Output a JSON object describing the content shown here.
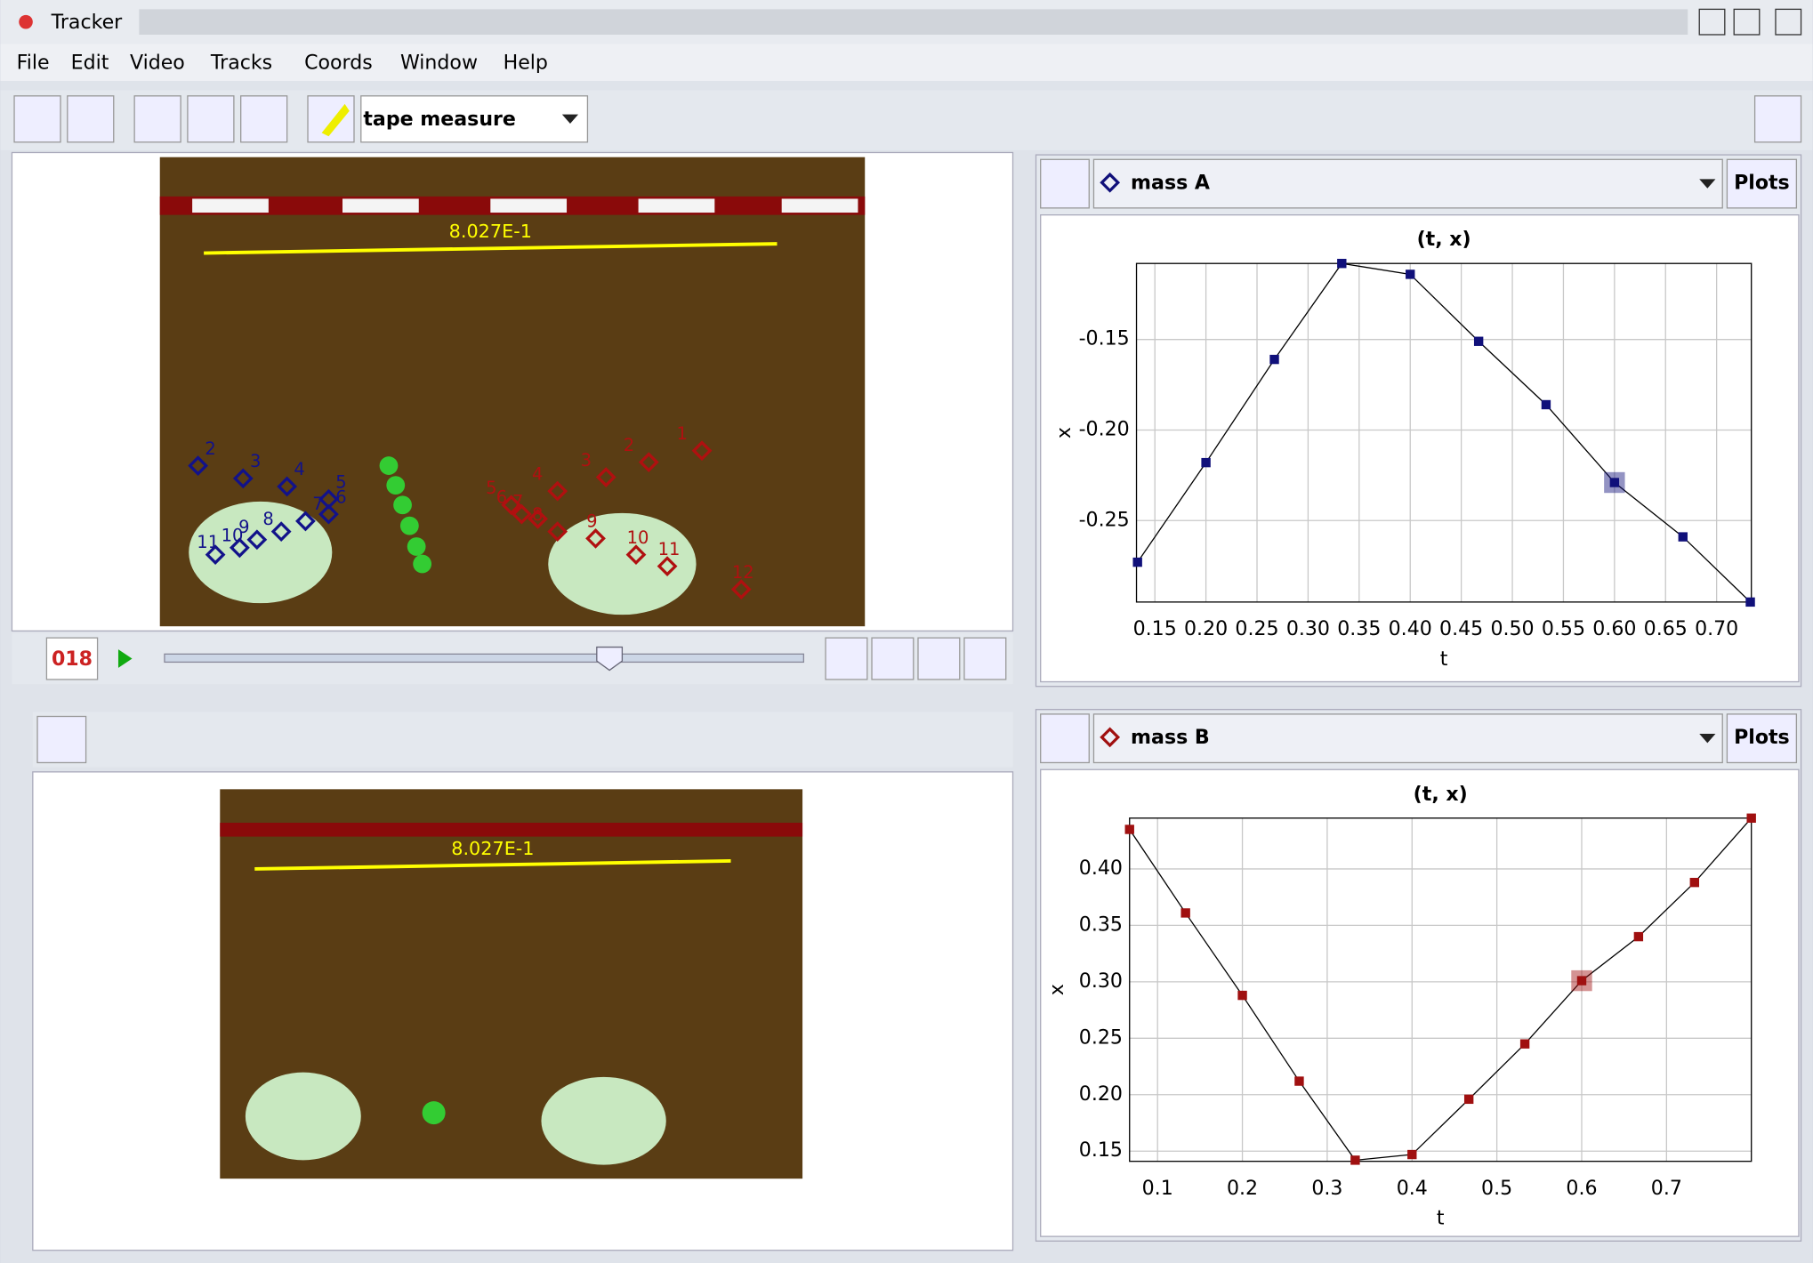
{
  "window": {
    "title": "Tracker"
  },
  "menu": [
    "File",
    "Edit",
    "Video",
    "Tracks",
    "Coords",
    "Window",
    "Help"
  ],
  "toolbar": {
    "tool": "tape measure"
  },
  "video": {
    "tape_label": "8.027E-1",
    "frame": "018",
    "lower_tape_label": "8.027E-1",
    "mass_a_labels": [
      "2",
      "3",
      "4",
      "5",
      "6",
      "7",
      "8",
      "9",
      "10",
      "11"
    ],
    "mass_b_labels": [
      "1",
      "2",
      "3",
      "4",
      "5",
      "6",
      "7",
      "8",
      "9",
      "10",
      "11",
      "12"
    ]
  },
  "plot_panels": [
    {
      "track": "mass A",
      "button": "Plots"
    },
    {
      "track": "mass B",
      "button": "Plots"
    }
  ],
  "chart_data": [
    {
      "type": "line",
      "title": "(t, x)",
      "x_label": "t",
      "y_label": "x",
      "color": "#10107a",
      "highlight": 7,
      "x": [
        0.133,
        0.2,
        0.267,
        0.333,
        0.4,
        0.467,
        0.533,
        0.6,
        0.667,
        0.733
      ],
      "values": [
        -0.273,
        -0.218,
        -0.161,
        -0.108,
        -0.114,
        -0.151,
        -0.186,
        -0.229,
        -0.259,
        -0.295
      ],
      "xlim": [
        0.132,
        0.734
      ],
      "ylim": [
        -0.295,
        -0.108
      ],
      "xticks": [
        0.15,
        {
          "value": 0.2,
          "label": "0.20"
        },
        0.25,
        {
          "value": 0.3,
          "label": "0.30"
        },
        0.35,
        {
          "value": 0.4,
          "label": "0.40"
        },
        0.45,
        {
          "value": 0.5,
          "label": "0.50"
        },
        0.55,
        {
          "value": 0.6,
          "label": "0.60"
        },
        0.65,
        {
          "value": 0.7,
          "label": "0.70"
        }
      ],
      "yticks": [
        -0.15,
        {
          "value": -0.2,
          "label": "-0.20"
        },
        -0.25
      ],
      "grid": true
    },
    {
      "type": "line",
      "title": "(t, x)",
      "x_label": "t",
      "y_label": "x",
      "color": "#a01010",
      "highlight": 8,
      "x": [
        0.067,
        0.133,
        0.2,
        0.267,
        0.333,
        0.4,
        0.467,
        0.533,
        0.6,
        0.667,
        0.733,
        0.8
      ],
      "values": [
        0.435,
        0.361,
        0.288,
        0.212,
        0.142,
        0.147,
        0.196,
        0.245,
        0.301,
        0.34,
        0.388,
        0.445
      ],
      "xlim": [
        0.067,
        0.8
      ],
      "ylim": [
        0.141,
        0.445
      ],
      "xticks": [
        0.1,
        0.2,
        0.3,
        0.4,
        0.5,
        0.6,
        0.7
      ],
      "yticks": [
        {
          "value": 0.4,
          "label": "0.40"
        },
        0.35,
        {
          "value": 0.3,
          "label": "0.30"
        },
        0.25,
        {
          "value": 0.2,
          "label": "0.20"
        },
        0.15
      ],
      "grid": true
    }
  ]
}
